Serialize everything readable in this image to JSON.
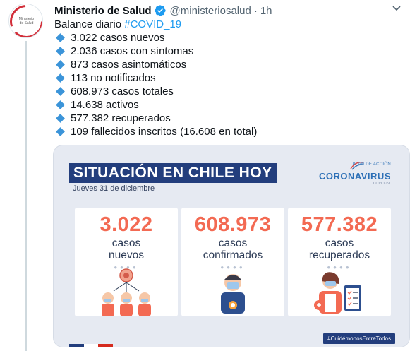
{
  "tweet": {
    "account_name": "Ministerio de Salud",
    "handle": "@ministeriosalud",
    "separator": "·",
    "time": "1h",
    "avatar_text": "Ministerio de Salud",
    "text_prefix": "Balance diario ",
    "hashtag": "#COVID_19",
    "bullets": [
      "3.022 casos nuevos",
      "2.036 casos con síntomas",
      "873 casos asintomáticos",
      "113 no notificados",
      "608.973 casos totales",
      "14.638 activos",
      "577.382 recuperados",
      "109 fallecidos inscritos (16.608 en total)"
    ]
  },
  "card": {
    "banner": "SITUACIÓN EN CHILE HOY",
    "date": "Jueves 31 de diciembre",
    "logo_plan": "PLAN DE ACCIÓN",
    "logo_main": "CORONAVIRUS",
    "logo_sub": "COVID-19",
    "stats": [
      {
        "number": "3.022",
        "line1": "casos",
        "line2": "nuevos"
      },
      {
        "number": "608.973",
        "line1": "casos",
        "line2": "confirmados"
      },
      {
        "number": "577.382",
        "line1": "casos",
        "line2": "recuperados"
      }
    ],
    "hashtag_badge": "#CuidémonosEntreTodos"
  },
  "colors": {
    "accent_blue": "#1d9bf0",
    "banner_navy": "#233e7d",
    "number_coral": "#f36a53",
    "card_bg": "#e6eaf2"
  },
  "icons": [
    "verified-badge-icon",
    "more-options-icon",
    "diamond-bullet-icon"
  ]
}
